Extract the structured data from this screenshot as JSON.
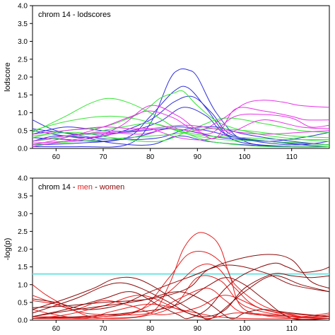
{
  "chart_data": [
    {
      "type": "line",
      "title": "chrom 14 - lodscores",
      "xlabel": "",
      "ylabel": "lodscore",
      "xlim": [
        55,
        118
      ],
      "ylim": [
        0,
        4.0
      ],
      "xticks": [
        60,
        70,
        80,
        90,
        100,
        110
      ],
      "yticks": [
        0.0,
        0.5,
        1.0,
        1.5,
        2.0,
        2.5,
        3.0,
        3.5,
        4.0
      ],
      "ytick_labels": [
        "0.0",
        "0.5",
        "1.0",
        "1.5",
        "2.0",
        "2.5",
        "3.0",
        "3.5",
        "4.0"
      ],
      "grid": false,
      "series": [
        {
          "color": "#3232dc",
          "x": [
            55,
            65,
            75,
            80,
            84,
            86,
            88,
            90,
            94,
            100,
            110,
            118
          ],
          "y": [
            0.05,
            0.05,
            0.1,
            0.7,
            1.9,
            2.2,
            2.2,
            2.0,
            1.0,
            0.2,
            0.05,
            0.05
          ]
        },
        {
          "color": "#3232dc",
          "x": [
            55,
            65,
            75,
            80,
            85,
            88,
            92,
            96,
            100,
            110,
            118
          ],
          "y": [
            0.1,
            0.15,
            0.3,
            0.9,
            1.6,
            1.7,
            1.1,
            0.4,
            0.15,
            0.05,
            0.05
          ]
        },
        {
          "color": "#3232dc",
          "x": [
            55,
            65,
            72,
            80,
            85,
            89,
            93,
            97,
            105,
            118
          ],
          "y": [
            0.5,
            0.3,
            0.4,
            0.8,
            1.3,
            1.45,
            1.0,
            0.4,
            0.2,
            0.1
          ]
        },
        {
          "color": "#3232dc",
          "x": [
            55,
            62,
            70,
            76,
            82,
            87,
            92,
            96,
            104,
            112,
            118
          ],
          "y": [
            0.4,
            0.6,
            0.5,
            0.5,
            0.75,
            1.15,
            0.9,
            0.4,
            0.2,
            0.3,
            0.45
          ]
        },
        {
          "color": "#3232dc",
          "x": [
            55,
            60,
            68,
            75,
            82,
            88,
            94,
            100,
            110,
            118
          ],
          "y": [
            0.8,
            0.5,
            0.3,
            0.25,
            0.3,
            0.55,
            0.6,
            0.4,
            0.2,
            0.1
          ]
        },
        {
          "color": "#3232dc",
          "x": [
            55,
            62,
            70,
            78,
            85,
            92,
            98,
            105,
            112,
            118
          ],
          "y": [
            0.3,
            0.25,
            0.2,
            0.35,
            0.6,
            0.5,
            0.3,
            0.15,
            0.1,
            0.2
          ]
        },
        {
          "color": "#3232dc",
          "x": [
            55,
            65,
            75,
            85,
            95,
            105,
            112,
            118
          ],
          "y": [
            0.55,
            0.4,
            0.45,
            0.55,
            0.3,
            0.2,
            0.1,
            0.05
          ]
        },
        {
          "color": "#3232dc",
          "x": [
            55,
            60,
            66,
            72,
            80,
            86,
            92,
            100,
            110,
            118
          ],
          "y": [
            0.2,
            0.35,
            0.3,
            0.15,
            0.1,
            0.35,
            0.2,
            0.1,
            0.05,
            0.05
          ]
        },
        {
          "color": "#32e632",
          "x": [
            55,
            62,
            67,
            71,
            75,
            80,
            85,
            90,
            95,
            105,
            118
          ],
          "y": [
            0.45,
            0.9,
            1.25,
            1.4,
            1.3,
            1.0,
            0.6,
            0.3,
            0.15,
            0.05,
            0.05
          ]
        },
        {
          "color": "#32e632",
          "x": [
            55,
            62,
            70,
            78,
            82,
            85,
            87,
            90,
            95,
            103,
            112,
            118
          ],
          "y": [
            0.3,
            0.5,
            0.6,
            1.0,
            1.4,
            1.55,
            1.6,
            1.2,
            0.7,
            0.4,
            0.25,
            0.2
          ]
        },
        {
          "color": "#32e632",
          "x": [
            55,
            62,
            70,
            76,
            82,
            88,
            95,
            104,
            112,
            118
          ],
          "y": [
            0.5,
            0.75,
            0.9,
            0.85,
            0.65,
            0.4,
            0.25,
            0.2,
            0.15,
            0.1
          ]
        },
        {
          "color": "#32e632",
          "x": [
            55,
            64,
            72,
            80,
            86,
            92,
            100,
            108,
            118
          ],
          "y": [
            0.2,
            0.35,
            0.55,
            0.7,
            0.5,
            0.35,
            0.3,
            0.25,
            0.25
          ]
        },
        {
          "color": "#32e632",
          "x": [
            55,
            65,
            75,
            85,
            92,
            100,
            110,
            118
          ],
          "y": [
            0.1,
            0.2,
            0.3,
            0.4,
            0.55,
            0.5,
            0.35,
            0.3
          ]
        },
        {
          "color": "#32e632",
          "x": [
            55,
            64,
            72,
            82,
            90,
            96,
            104,
            112,
            118
          ],
          "y": [
            0.35,
            0.45,
            0.3,
            0.2,
            0.6,
            0.85,
            0.7,
            0.5,
            0.45
          ]
        },
        {
          "color": "#e632e6",
          "x": [
            55,
            62,
            70,
            76,
            80,
            85,
            90,
            95,
            100,
            104,
            108,
            112,
            118
          ],
          "y": [
            0.1,
            0.3,
            0.6,
            0.9,
            1.05,
            0.85,
            0.5,
            0.8,
            1.25,
            1.35,
            1.3,
            1.2,
            1.15
          ]
        },
        {
          "color": "#e632e6",
          "x": [
            55,
            62,
            70,
            78,
            84,
            90,
            94,
            98,
            104,
            110,
            113,
            118
          ],
          "y": [
            0.2,
            0.35,
            0.45,
            0.4,
            0.55,
            0.45,
            0.3,
            1.1,
            1.05,
            0.9,
            0.8,
            0.8
          ]
        },
        {
          "color": "#e632e6",
          "x": [
            55,
            62,
            68,
            74,
            80,
            86,
            92,
            98,
            104,
            110,
            114,
            118
          ],
          "y": [
            0.15,
            0.2,
            0.3,
            0.65,
            1.2,
            0.9,
            0.4,
            0.9,
            0.95,
            0.85,
            0.6,
            0.65
          ]
        },
        {
          "color": "#e632e6",
          "x": [
            55,
            62,
            70,
            76,
            80,
            86,
            92,
            98,
            104,
            112,
            118
          ],
          "y": [
            0.4,
            0.5,
            0.6,
            0.55,
            0.55,
            0.3,
            0.25,
            0.5,
            0.8,
            0.6,
            0.55
          ]
        },
        {
          "color": "#e632e6",
          "x": [
            55,
            64,
            72,
            80,
            88,
            96,
            104,
            112,
            118
          ],
          "y": [
            0.05,
            0.25,
            0.4,
            0.55,
            0.65,
            0.5,
            0.4,
            0.45,
            0.5
          ]
        }
      ]
    },
    {
      "type": "line",
      "title_parts": [
        {
          "text": "chrom 14 - ",
          "color": "#000000"
        },
        {
          "text": "men",
          "color": "#e61e1e"
        },
        {
          "text": " - ",
          "color": "#000000"
        },
        {
          "text": "women",
          "color": "#8c0a0a"
        }
      ],
      "xlabel": "",
      "ylabel": "-log(p)",
      "xlim": [
        55,
        118
      ],
      "ylim": [
        0,
        4.0
      ],
      "xticks": [
        60,
        70,
        80,
        90,
        100,
        110
      ],
      "yticks": [
        0.0,
        0.5,
        1.0,
        1.5,
        2.0,
        2.5,
        3.0,
        3.5,
        4.0
      ],
      "ytick_labels": [
        "0.0",
        "0.5",
        "1.0",
        "1.5",
        "2.0",
        "2.5",
        "3.0",
        "3.5",
        "4.0"
      ],
      "grid": false,
      "reference_line": {
        "y": 1.3,
        "color": "#6ee6e6"
      },
      "series": [
        {
          "color": "#e61e1e",
          "x": [
            55,
            70,
            80,
            84,
            87,
            90,
            93,
            95,
            97,
            100,
            110,
            118
          ],
          "y": [
            0.05,
            0.05,
            0.2,
            1.0,
            2.0,
            2.45,
            2.35,
            2.0,
            1.2,
            0.3,
            0.05,
            0.05
          ]
        },
        {
          "color": "#e61e1e",
          "x": [
            55,
            70,
            78,
            84,
            88,
            92,
            96,
            98,
            104,
            112,
            118
          ],
          "y": [
            0.1,
            0.1,
            0.3,
            1.2,
            1.85,
            1.9,
            1.5,
            1.0,
            0.4,
            0.1,
            0.05
          ]
        },
        {
          "color": "#e61e1e",
          "x": [
            55,
            70,
            78,
            84,
            90,
            94,
            98,
            104,
            118
          ],
          "y": [
            0.05,
            0.1,
            0.3,
            0.8,
            1.5,
            1.5,
            0.9,
            0.3,
            0.1
          ]
        },
        {
          "color": "#e61e1e",
          "x": [
            55,
            58,
            62,
            66,
            70,
            78,
            85,
            90,
            95,
            100,
            110,
            118
          ],
          "y": [
            1.0,
            0.7,
            0.4,
            0.15,
            0.05,
            0.1,
            0.4,
            1.2,
            1.1,
            0.4,
            0.1,
            0.05
          ]
        },
        {
          "color": "#e61e1e",
          "x": [
            55,
            58,
            62,
            66,
            72,
            80,
            86,
            92,
            96,
            100,
            110,
            118
          ],
          "y": [
            0.7,
            0.55,
            0.35,
            0.2,
            0.15,
            0.2,
            0.6,
            0.9,
            0.55,
            0.2,
            0.1,
            0.05
          ]
        },
        {
          "color": "#e61e1e",
          "x": [
            55,
            60,
            64,
            70,
            76,
            82,
            90,
            96,
            104,
            112,
            118
          ],
          "y": [
            0.55,
            0.45,
            0.3,
            0.55,
            0.4,
            0.15,
            0.35,
            0.7,
            0.3,
            0.1,
            0.1
          ]
        },
        {
          "color": "#e61e1e",
          "x": [
            55,
            60,
            66,
            72,
            80,
            88,
            94,
            100,
            110,
            118
          ],
          "y": [
            0.3,
            0.15,
            0.05,
            0.25,
            0.45,
            0.25,
            0.1,
            0.05,
            0.05,
            0.15
          ]
        },
        {
          "color": "#e61e1e",
          "x": [
            55,
            62,
            70,
            78,
            86,
            92,
            98,
            106,
            112,
            118
          ],
          "y": [
            0.05,
            0.15,
            0.4,
            0.7,
            0.3,
            0.05,
            0.2,
            0.15,
            0.1,
            0.2
          ]
        },
        {
          "color": "#8c0a0a",
          "x": [
            55,
            62,
            70,
            76,
            82,
            86,
            88,
            92,
            96,
            100,
            106,
            109,
            112,
            116,
            118
          ],
          "y": [
            0.1,
            0.3,
            0.6,
            0.8,
            0.4,
            0.15,
            0.05,
            0.3,
            0.9,
            1.3,
            1.6,
            1.5,
            1.35,
            1.4,
            1.5
          ]
        },
        {
          "color": "#8c0a0a",
          "x": [
            55,
            64,
            70,
            74,
            78,
            84,
            88,
            92,
            96,
            100,
            106,
            110,
            114,
            118
          ],
          "y": [
            0.2,
            0.6,
            0.95,
            1.05,
            0.9,
            0.5,
            0.2,
            0.1,
            0.3,
            0.9,
            1.3,
            1.25,
            1.2,
            1.25
          ]
        },
        {
          "color": "#8c0a0a",
          "x": [
            55,
            62,
            68,
            72,
            76,
            80,
            86,
            90,
            93,
            100,
            106,
            112,
            118
          ],
          "y": [
            0.3,
            0.6,
            0.9,
            1.15,
            1.2,
            1.0,
            0.5,
            0.2,
            0.05,
            0.8,
            1.25,
            1.0,
            0.8
          ]
        },
        {
          "color": "#8c0a0a",
          "x": [
            55,
            62,
            70,
            78,
            86,
            92,
            97,
            100,
            104,
            110,
            118
          ],
          "y": [
            0.1,
            0.25,
            0.4,
            0.55,
            0.8,
            0.5,
            0.05,
            0.2,
            0.3,
            0.2,
            0.1
          ]
        },
        {
          "color": "#8c0a0a",
          "x": [
            55,
            62,
            70,
            80,
            88,
            92,
            98,
            105,
            110,
            114,
            118
          ],
          "y": [
            0.35,
            0.4,
            0.5,
            0.6,
            0.9,
            1.4,
            1.7,
            1.85,
            1.7,
            1.1,
            0.9
          ]
        },
        {
          "color": "#8c0a0a",
          "x": [
            55,
            60,
            64,
            68,
            74,
            80,
            88,
            96,
            104,
            110,
            118
          ],
          "y": [
            0.6,
            0.5,
            0.35,
            0.3,
            0.45,
            0.8,
            1.2,
            1.55,
            1.35,
            1.0,
            0.8
          ]
        },
        {
          "color": "#8c0a0a",
          "x": [
            55,
            65,
            75,
            85,
            92,
            96,
            100,
            104,
            110,
            118
          ],
          "y": [
            0.05,
            0.1,
            0.2,
            0.4,
            0.95,
            1.2,
            1.0,
            0.6,
            0.05,
            0.05
          ]
        }
      ]
    }
  ]
}
